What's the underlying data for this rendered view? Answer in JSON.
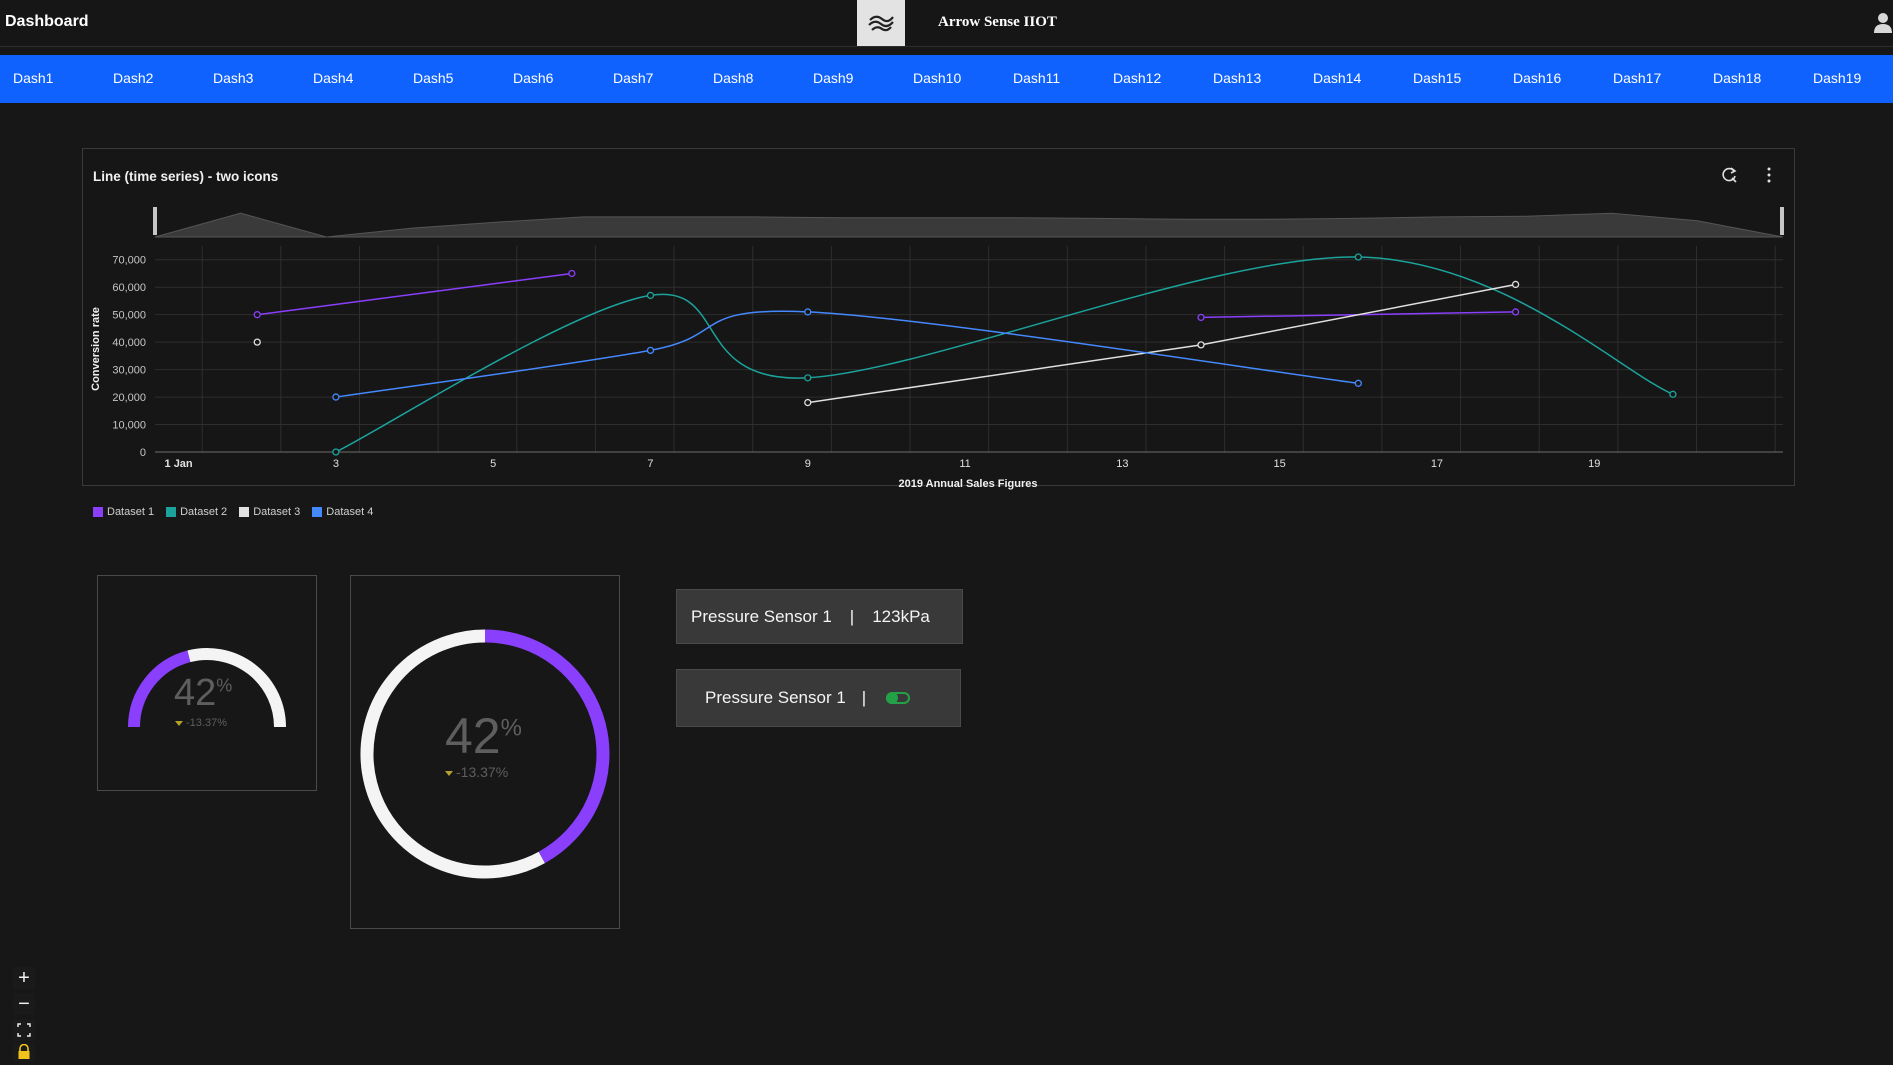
{
  "header": {
    "title": "Dashboard",
    "brand": "Arrow Sense IIOT"
  },
  "nav": {
    "items": [
      "Dash1",
      "Dash2",
      "Dash3",
      "Dash4",
      "Dash5",
      "Dash6",
      "Dash7",
      "Dash8",
      "Dash9",
      "Dash10",
      "Dash11",
      "Dash12",
      "Dash13",
      "Dash14",
      "Dash15",
      "Dash16",
      "Dash17",
      "Dash18",
      "Dash19"
    ]
  },
  "chart_card": {
    "title": "Line (time series) - two icons",
    "icons": [
      "refresh-icon",
      "overflow-menu-icon"
    ]
  },
  "chart_data": {
    "type": "line",
    "title": "Line (time series) - two icons",
    "xlabel": "2019 Annual Sales Figures",
    "ylabel": "Conversion rate",
    "x_ticks": [
      "1 Jan",
      "3",
      "5",
      "7",
      "9",
      "11",
      "13",
      "15",
      "17",
      "19"
    ],
    "y_ticks": [
      "0",
      "10,000",
      "20,000",
      "30,000",
      "40,000",
      "50,000",
      "60,000",
      "70,000"
    ],
    "xlim": [
      0.7,
      21.4
    ],
    "ylim": [
      0,
      75000
    ],
    "grid": true,
    "legend_position": "bottom-left",
    "series": [
      {
        "name": "Dataset 1",
        "color": "#8a3ffc",
        "curve": "linear",
        "points": [
          [
            2,
            50000
          ],
          [
            6,
            65000
          ],
          [
            14,
            49000
          ],
          [
            18,
            51000
          ]
        ],
        "break_after": [
          1
        ]
      },
      {
        "name": "Dataset 2",
        "color": "#1ba39c",
        "curve": "smooth",
        "points": [
          [
            3,
            0
          ],
          [
            7,
            57000
          ],
          [
            9,
            27000
          ],
          [
            16,
            71000
          ],
          [
            20,
            21000
          ]
        ]
      },
      {
        "name": "Dataset 3",
        "color": "#e0e0e0",
        "curve": "linear",
        "points": [
          [
            2,
            40000
          ],
          [
            9,
            18000
          ],
          [
            14,
            39000
          ],
          [
            18,
            61000
          ]
        ],
        "break_after": [
          0
        ]
      },
      {
        "name": "Dataset 4",
        "color": "#4589ff",
        "curve": "smooth",
        "points": [
          [
            3,
            20000
          ],
          [
            7,
            37000
          ],
          [
            9,
            51000
          ],
          [
            16,
            25000
          ]
        ]
      }
    ],
    "overview_profile": [
      0,
      32000,
      0,
      12000,
      20000,
      27000,
      27000,
      27000,
      26000,
      26000,
      26000,
      25000,
      24000,
      24000,
      25000,
      27000,
      28000,
      32000,
      22000,
      0
    ]
  },
  "gauges": [
    {
      "value": "42",
      "unit": "%",
      "delta": "-13.37%",
      "fraction": 0.42,
      "type": "semicircle"
    },
    {
      "value": "42",
      "unit": "%",
      "delta": "-13.37%",
      "fraction": 0.42,
      "type": "circle"
    }
  ],
  "sensors": [
    {
      "label": "Pressure Sensor 1",
      "separator": "|",
      "value": "123kPa"
    },
    {
      "label": "Pressure Sensor 1",
      "separator": "|",
      "state": "on"
    }
  ],
  "colors": {
    "accent": "#0f62fe",
    "gauge_fill": "#8a3ffc",
    "gauge_track": "#f4f4f4",
    "toggle_on": "#24a148"
  }
}
